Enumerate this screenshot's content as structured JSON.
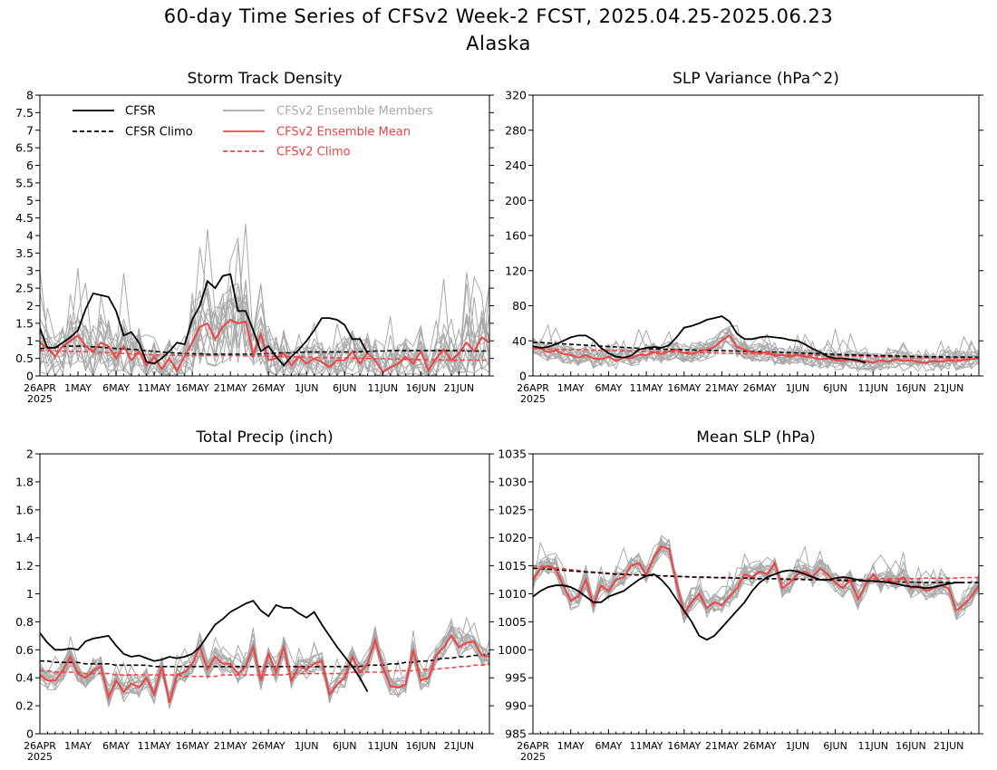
{
  "page": {
    "title": "60-day Time Series of CFSv2 Week-2 FCST, 2025.04.25-2025.06.23",
    "subtitle": "Alaska"
  },
  "colors": {
    "cfsr": "#000000",
    "ensemble_members": "#a9a9a9",
    "ensemble_mean": "#ee4444",
    "cfsv2_climo": "#ee4444"
  },
  "legend": [
    {
      "label": "CFSR",
      "style": "solid",
      "color": "#000000"
    },
    {
      "label": "CFSR Climo",
      "style": "dashed",
      "color": "#000000"
    },
    {
      "label": "CFSv2 Ensemble Members",
      "style": "solid",
      "color": "#a9a9a9"
    },
    {
      "label": "CFSv2 Ensemble Mean",
      "style": "solid",
      "color": "#ee4444"
    },
    {
      "label": "CFSv2 Climo",
      "style": "dashed",
      "color": "#ee4444"
    }
  ],
  "chart_data": [
    {
      "type": "line",
      "title": "Storm Track Density",
      "x_start": "2025-04-26",
      "n_days": 60,
      "x_tick_labels": [
        "26APR",
        "1MAY",
        "6MAY",
        "11MAY",
        "16MAY",
        "21MAY",
        "26MAY",
        "1JUN",
        "6JUN",
        "11JUN",
        "16JUN",
        "21JUN"
      ],
      "x_year_label": "2025",
      "ylim": [
        0,
        8
      ],
      "y_ticks": [
        "0",
        "0.5",
        "1",
        "1.5",
        "2",
        "2.5",
        "3",
        "3.5",
        "4",
        "4.5",
        "5",
        "5.5",
        "6",
        "6.5",
        "7",
        "7.5",
        "8"
      ],
      "cfsr": [
        1.35,
        0.8,
        0.8,
        0.95,
        1.1,
        1.3,
        1.9,
        2.35,
        2.3,
        2.25,
        1.85,
        1.15,
        1.25,
        0.95,
        0.4,
        0.35,
        0.5,
        0.7,
        0.95,
        0.9,
        1.6,
        2.0,
        2.7,
        2.5,
        2.85,
        2.9,
        1.85,
        1.85,
        1.3,
        0.7,
        0.85,
        0.55,
        0.3,
        0.55,
        0.75,
        1.0,
        1.3,
        1.65,
        1.65,
        1.6,
        1.45,
        1.05,
        1.05,
        0.65
      ],
      "cfsr_climo": [
        0.78,
        0.8,
        0.82,
        0.84,
        0.85,
        0.85,
        0.84,
        0.83,
        0.82,
        0.8,
        0.78,
        0.77,
        0.76,
        0.74,
        0.72,
        0.7,
        0.68,
        0.66,
        0.65,
        0.64,
        0.63,
        0.63,
        0.62,
        0.62,
        0.62,
        0.62,
        0.62,
        0.62,
        0.62,
        0.63,
        0.64,
        0.65,
        0.66,
        0.66,
        0.67,
        0.68,
        0.68,
        0.68,
        0.68,
        0.68,
        0.68,
        0.68,
        0.69,
        0.7,
        0.71,
        0.71,
        0.72,
        0.72,
        0.72,
        0.72,
        0.72,
        0.72,
        0.72,
        0.72,
        0.72,
        0.72,
        0.71,
        0.71,
        0.71,
        0.71
      ],
      "ensemble_mean": [
        0.95,
        0.8,
        0.55,
        0.85,
        1.0,
        1.15,
        0.85,
        0.7,
        0.95,
        0.85,
        0.5,
        0.85,
        0.45,
        0.7,
        0.3,
        0.55,
        0.2,
        0.5,
        0.15,
        0.55,
        0.95,
        1.4,
        1.5,
        1.05,
        1.4,
        1.6,
        1.5,
        1.55,
        0.6,
        1.2,
        0.45,
        0.5,
        0.65,
        0.3,
        0.55,
        0.35,
        0.5,
        0.4,
        0.25,
        0.45,
        0.45,
        0.7,
        0.35,
        0.65,
        0.45,
        0.1,
        0.25,
        0.35,
        0.55,
        0.35,
        0.7,
        0.15,
        0.5,
        0.75,
        0.45,
        0.65,
        0.95,
        0.7,
        1.1,
        0.95
      ],
      "cfsv2_climo": [
        0.72,
        0.72,
        0.71,
        0.71,
        0.7,
        0.7,
        0.69,
        0.68,
        0.67,
        0.66,
        0.65,
        0.64,
        0.63,
        0.62,
        0.61,
        0.6,
        0.6,
        0.59,
        0.59,
        0.58,
        0.58,
        0.58,
        0.58,
        0.58,
        0.58,
        0.58,
        0.58,
        0.57,
        0.57,
        0.57,
        0.56,
        0.56,
        0.55,
        0.55,
        0.54,
        0.54,
        0.53,
        0.53,
        0.52,
        0.52,
        0.51,
        0.51,
        0.5,
        0.5,
        0.49,
        0.49,
        0.48,
        0.48,
        0.47,
        0.47,
        0.47,
        0.46,
        0.46,
        0.46,
        0.45,
        0.45,
        0.45,
        0.45,
        0.45,
        0.45
      ]
    },
    {
      "type": "line",
      "title": "SLP Variance (hPa^2)",
      "x_start": "2025-04-26",
      "n_days": 60,
      "x_tick_labels": [
        "26APR",
        "1MAY",
        "6MAY",
        "11MAY",
        "16MAY",
        "21MAY",
        "26MAY",
        "1JUN",
        "6JUN",
        "11JUN",
        "16JUN",
        "21JUN"
      ],
      "x_year_label": "2025",
      "ylim": [
        0,
        320
      ],
      "y_ticks": [
        "0",
        "40",
        "80",
        "120",
        "160",
        "200",
        "240",
        "280",
        "320"
      ],
      "cfsr": [
        34,
        32,
        33,
        36,
        40,
        44,
        46,
        46,
        41,
        32,
        26,
        22,
        21,
        23,
        30,
        32,
        33,
        32,
        35,
        44,
        55,
        57,
        60,
        64,
        66,
        68,
        62,
        48,
        42,
        42,
        44,
        45,
        44,
        43,
        41,
        40,
        36,
        31,
        27,
        22,
        20,
        20,
        19,
        18,
        15
      ],
      "cfsr_climo": [
        38,
        38,
        37.5,
        37,
        36.5,
        36,
        35.5,
        35,
        34.5,
        34,
        33.5,
        33,
        32.5,
        32,
        31.5,
        31,
        30.8,
        30.5,
        30.2,
        30,
        29.8,
        29.5,
        29.3,
        29.1,
        29,
        28.8,
        28.6,
        28.4,
        28.2,
        28,
        27.7,
        27.4,
        27.1,
        26.8,
        26.5,
        26.2,
        25.9,
        25.6,
        25.3,
        25,
        24.7,
        24.4,
        24.1,
        23.8,
        23.5,
        23.3,
        23.1,
        22.9,
        22.7,
        22.5,
        22.3,
        22.1,
        22,
        21.9,
        21.8,
        21.7,
        21.6,
        21.5,
        21.4,
        21.3
      ],
      "ensemble_mean": [
        33,
        31,
        27,
        29,
        25,
        24,
        21,
        24,
        20,
        19,
        22,
        17,
        21,
        20,
        24,
        24,
        27,
        25,
        28,
        30,
        26,
        25,
        28,
        30,
        33,
        41,
        46,
        33,
        30,
        27,
        26,
        27,
        23,
        24,
        22,
        24,
        22,
        21,
        19,
        20,
        18,
        17,
        19,
        16,
        17,
        15,
        18,
        16,
        19,
        17,
        18,
        16,
        15,
        17,
        16,
        18,
        17,
        18,
        19,
        20
      ],
      "cfsv2_climo": [
        31,
        30.8,
        30.6,
        30.4,
        30.2,
        30,
        29.8,
        29.6,
        29.4,
        29.2,
        29,
        28.8,
        28.6,
        28.4,
        28.2,
        28,
        27.8,
        27.6,
        27.4,
        27.2,
        27,
        26.8,
        26.6,
        26.4,
        26.2,
        26,
        25.8,
        25.6,
        25.4,
        25.2,
        25,
        24.8,
        24.6,
        24.4,
        24.2,
        24,
        23.8,
        23.6,
        23.4,
        23.2,
        23,
        22.8,
        22.6,
        22.4,
        22.2,
        22,
        21.8,
        21.6,
        21.4,
        21.2,
        21,
        20.8,
        20.6,
        20.4,
        20.2,
        20,
        19.8,
        19.6,
        19.4,
        19.2
      ]
    },
    {
      "type": "line",
      "title": "Total Precip (inch)",
      "x_start": "2025-04-26",
      "n_days": 60,
      "x_tick_labels": [
        "26APR",
        "1MAY",
        "6MAY",
        "11MAY",
        "16MAY",
        "21MAY",
        "26MAY",
        "1JUN",
        "6JUN",
        "11JUN",
        "16JUN",
        "21JUN"
      ],
      "x_year_label": "2025",
      "ylim": [
        0,
        2
      ],
      "y_ticks": [
        "0",
        "0.2",
        "0.4",
        "0.6",
        "0.8",
        "1",
        "1.2",
        "1.4",
        "1.6",
        "1.8",
        "2"
      ],
      "cfsr": [
        0.72,
        0.65,
        0.6,
        0.6,
        0.61,
        0.6,
        0.66,
        0.68,
        0.69,
        0.7,
        0.63,
        0.57,
        0.55,
        0.56,
        0.54,
        0.52,
        0.53,
        0.55,
        0.54,
        0.55,
        0.57,
        0.62,
        0.7,
        0.78,
        0.82,
        0.87,
        0.9,
        0.93,
        0.95,
        0.88,
        0.84,
        0.92,
        0.9,
        0.9,
        0.86,
        0.83,
        0.87,
        0.78,
        0.7,
        0.62,
        0.55,
        0.48,
        0.4,
        0.3
      ],
      "cfsr_climo": [
        0.52,
        0.52,
        0.51,
        0.51,
        0.51,
        0.51,
        0.5,
        0.5,
        0.5,
        0.5,
        0.49,
        0.49,
        0.49,
        0.49,
        0.49,
        0.48,
        0.48,
        0.48,
        0.48,
        0.48,
        0.48,
        0.48,
        0.48,
        0.48,
        0.48,
        0.48,
        0.48,
        0.48,
        0.48,
        0.48,
        0.48,
        0.48,
        0.48,
        0.48,
        0.48,
        0.48,
        0.48,
        0.48,
        0.48,
        0.48,
        0.48,
        0.48,
        0.48,
        0.49,
        0.49,
        0.49,
        0.5,
        0.5,
        0.51,
        0.51,
        0.52,
        0.52,
        0.53,
        0.54,
        0.54,
        0.55,
        0.55,
        0.56,
        0.56,
        0.57
      ],
      "ensemble_mean": [
        0.42,
        0.38,
        0.38,
        0.45,
        0.55,
        0.43,
        0.4,
        0.45,
        0.48,
        0.26,
        0.38,
        0.3,
        0.36,
        0.33,
        0.4,
        0.28,
        0.48,
        0.22,
        0.42,
        0.44,
        0.5,
        0.62,
        0.46,
        0.55,
        0.5,
        0.5,
        0.43,
        0.48,
        0.62,
        0.38,
        0.57,
        0.44,
        0.62,
        0.38,
        0.48,
        0.46,
        0.5,
        0.52,
        0.28,
        0.35,
        0.4,
        0.55,
        0.44,
        0.5,
        0.67,
        0.48,
        0.34,
        0.33,
        0.35,
        0.6,
        0.38,
        0.4,
        0.56,
        0.62,
        0.7,
        0.62,
        0.65,
        0.66,
        0.56,
        0.55
      ],
      "cfsv2_climo": [
        0.45,
        0.45,
        0.44,
        0.44,
        0.44,
        0.44,
        0.43,
        0.43,
        0.43,
        0.43,
        0.42,
        0.42,
        0.42,
        0.42,
        0.42,
        0.42,
        0.42,
        0.42,
        0.42,
        0.41,
        0.41,
        0.41,
        0.41,
        0.41,
        0.42,
        0.42,
        0.42,
        0.42,
        0.42,
        0.42,
        0.42,
        0.42,
        0.42,
        0.43,
        0.43,
        0.43,
        0.43,
        0.43,
        0.43,
        0.43,
        0.43,
        0.44,
        0.44,
        0.44,
        0.44,
        0.44,
        0.45,
        0.45,
        0.45,
        0.45,
        0.46,
        0.46,
        0.46,
        0.47,
        0.47,
        0.48,
        0.48,
        0.49,
        0.49,
        0.5
      ]
    },
    {
      "type": "line",
      "title": "Mean SLP (hPa)",
      "x_start": "2025-04-26",
      "n_days": 60,
      "x_tick_labels": [
        "26APR",
        "1MAY",
        "6MAY",
        "11MAY",
        "16MAY",
        "21MAY",
        "26MAY",
        "1JUN",
        "6JUN",
        "11JUN",
        "16JUN",
        "21JUN"
      ],
      "x_year_label": "2025",
      "ylim": [
        985,
        1035
      ],
      "y_ticks": [
        "985",
        "990",
        "995",
        "1000",
        "1005",
        "1010",
        "1015",
        "1020",
        "1025",
        "1030",
        "1035"
      ],
      "cfsr": [
        1009.5,
        1010.5,
        1011.2,
        1011.5,
        1011.5,
        1011.2,
        1010.5,
        1009.5,
        1008.5,
        1008.5,
        1009.5,
        1010,
        1010.5,
        1011.5,
        1012.5,
        1013.2,
        1013.5,
        1012.5,
        1011,
        1009,
        1007,
        1005,
        1002.5,
        1001.8,
        1002.5,
        1004,
        1005.5,
        1007,
        1008.5,
        1010.5,
        1012,
        1013,
        1013.5,
        1014,
        1014.2,
        1014,
        1013.5,
        1013,
        1012.5,
        1012.5,
        1012.8,
        1013,
        1012.8,
        1012.5,
        1012.3,
        1012.3,
        1012.2,
        1012,
        1011.8,
        1011.5,
        1011.3,
        1011.2,
        1011,
        1011.2,
        1011.5,
        1011.8,
        1012,
        1012
      ],
      "cfsr_climo": [
        1014.6,
        1014.5,
        1014.4,
        1014.3,
        1014.2,
        1014.1,
        1014,
        1013.9,
        1013.8,
        1013.7,
        1013.6,
        1013.5,
        1013.5,
        1013.4,
        1013.4,
        1013.3,
        1013.3,
        1013.2,
        1013.2,
        1013.1,
        1013.1,
        1013,
        1013,
        1013,
        1012.9,
        1012.9,
        1012.9,
        1012.8,
        1012.8,
        1012.8,
        1012.7,
        1012.7,
        1012.7,
        1012.6,
        1012.6,
        1012.6,
        1012.5,
        1012.5,
        1012.5,
        1012.4,
        1012.4,
        1012.4,
        1012.3,
        1012.3,
        1012.3,
        1012.2,
        1012.2,
        1012.2,
        1012.1,
        1012.1,
        1012.1,
        1012,
        1012,
        1012,
        1012,
        1012,
        1012,
        1012,
        1012,
        1012
      ],
      "ensemble_mean": [
        1012.5,
        1014.5,
        1015,
        1014.5,
        1011.5,
        1008.8,
        1009.5,
        1012.5,
        1008,
        1011.5,
        1010.5,
        1012.5,
        1013,
        1015,
        1015.5,
        1013.5,
        1016.5,
        1018.5,
        1018,
        1012,
        1006.5,
        1008.5,
        1010,
        1007.5,
        1008.5,
        1008,
        1009.5,
        1011,
        1013.5,
        1013,
        1014,
        1013.5,
        1015.5,
        1011,
        1012,
        1013.5,
        1014,
        1013,
        1014.5,
        1013.5,
        1012,
        1011,
        1012.5,
        1009,
        1011.5,
        1013.5,
        1012,
        1012.5,
        1012,
        1013,
        1011,
        1011.5,
        1010.5,
        1011,
        1011.5,
        1011,
        1007,
        1008,
        1009.5,
        1011.5
      ],
      "cfsv2_climo": [
        1015,
        1014.9,
        1014.8,
        1014.6,
        1014.5,
        1014.3,
        1014.2,
        1014,
        1013.9,
        1013.8,
        1013.7,
        1013.6,
        1013.5,
        1013.4,
        1013.3,
        1013.3,
        1013.2,
        1013.2,
        1013.1,
        1013.1,
        1013,
        1013,
        1012.9,
        1012.9,
        1012.9,
        1012.8,
        1012.8,
        1012.8,
        1012.8,
        1012.7,
        1012.7,
        1012.7,
        1012.7,
        1012.7,
        1012.6,
        1012.6,
        1012.6,
        1012.6,
        1012.6,
        1012.6,
        1012.6,
        1012.6,
        1012.6,
        1012.6,
        1012.6,
        1012.7,
        1012.7,
        1012.7,
        1012.7,
        1012.7,
        1012.7,
        1012.7,
        1012.8,
        1012.8,
        1012.8,
        1012.8,
        1012.8,
        1012.9,
        1012.9,
        1012.9
      ]
    }
  ]
}
